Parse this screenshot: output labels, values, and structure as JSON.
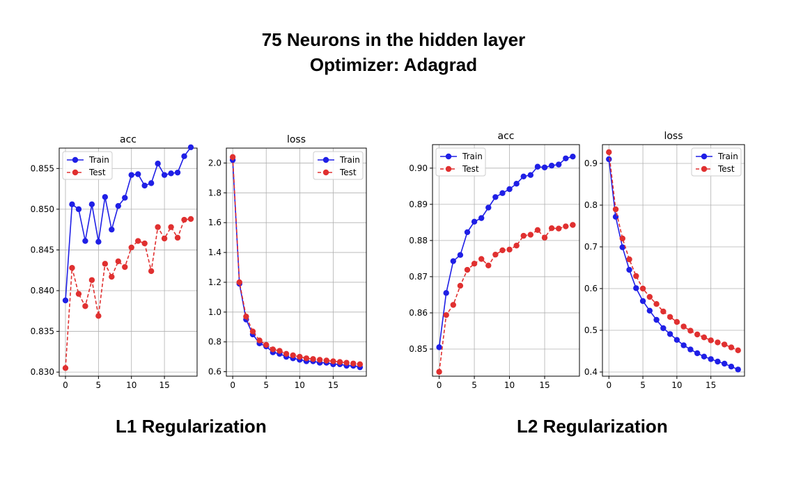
{
  "figure": {
    "title_line1": "75 Neurons in the hidden layer",
    "title_line2": "Optimizer: Adagrad",
    "left_group_label": "L1 Regularization",
    "right_group_label": "L2 Regularization"
  },
  "colors": {
    "train": "#1f1fe6",
    "test": "#e03030",
    "grid": "#b0b0b0"
  },
  "chart_data": [
    {
      "type": "line",
      "group": "L1 Regularization",
      "title": "acc",
      "x": [
        0,
        1,
        2,
        3,
        4,
        5,
        6,
        7,
        8,
        9,
        10,
        11,
        12,
        13,
        14,
        15,
        16,
        17,
        18,
        19
      ],
      "xticks": [
        0,
        5,
        10,
        15
      ],
      "ylim": [
        0.8295,
        0.8575
      ],
      "yticks": [
        "0.830",
        "0.835",
        "0.840",
        "0.845",
        "0.850",
        "0.855"
      ],
      "yticks_values": [
        0.83,
        0.835,
        0.84,
        0.845,
        0.85,
        0.855
      ],
      "grid": true,
      "legend": "top-left",
      "series": [
        {
          "name": "Train",
          "style": "solid",
          "values": [
            0.8388,
            0.8506,
            0.85,
            0.8461,
            0.8506,
            0.846,
            0.8515,
            0.8475,
            0.8504,
            0.8514,
            0.8542,
            0.8543,
            0.8529,
            0.8532,
            0.8556,
            0.8542,
            0.8544,
            0.8545,
            0.8565,
            0.8576
          ]
        },
        {
          "name": "Test",
          "style": "dashed",
          "values": [
            0.8305,
            0.8428,
            0.8396,
            0.8381,
            0.8413,
            0.8369,
            0.8433,
            0.8417,
            0.8436,
            0.8429,
            0.8453,
            0.8461,
            0.8458,
            0.8424,
            0.8478,
            0.8464,
            0.8478,
            0.8465,
            0.8487,
            0.8488
          ]
        }
      ]
    },
    {
      "type": "line",
      "group": "L1 Regularization",
      "title": "loss",
      "x": [
        0,
        1,
        2,
        3,
        4,
        5,
        6,
        7,
        8,
        9,
        10,
        11,
        12,
        13,
        14,
        15,
        16,
        17,
        18,
        19
      ],
      "xticks": [
        0,
        5,
        10,
        15
      ],
      "ylim": [
        0.57,
        2.1
      ],
      "yticks": [
        "0.6",
        "0.8",
        "1.0",
        "1.2",
        "1.4",
        "1.6",
        "1.8",
        "2.0"
      ],
      "yticks_values": [
        0.6,
        0.8,
        1.0,
        1.2,
        1.4,
        1.6,
        1.8,
        2.0
      ],
      "grid": true,
      "legend": "top-right",
      "series": [
        {
          "name": "Train",
          "style": "solid",
          "values": [
            2.02,
            1.19,
            0.95,
            0.85,
            0.79,
            0.77,
            0.73,
            0.72,
            0.7,
            0.69,
            0.68,
            0.67,
            0.67,
            0.66,
            0.66,
            0.65,
            0.65,
            0.64,
            0.64,
            0.63
          ]
        },
        {
          "name": "Test",
          "style": "dashed",
          "values": [
            2.04,
            1.2,
            0.97,
            0.87,
            0.81,
            0.78,
            0.75,
            0.74,
            0.72,
            0.71,
            0.7,
            0.69,
            0.685,
            0.68,
            0.675,
            0.67,
            0.665,
            0.66,
            0.655,
            0.65
          ]
        }
      ]
    },
    {
      "type": "line",
      "group": "L2 Regularization",
      "title": "acc",
      "x": [
        0,
        1,
        2,
        3,
        4,
        5,
        6,
        7,
        8,
        9,
        10,
        11,
        12,
        13,
        14,
        15,
        16,
        17,
        18,
        19
      ],
      "xticks": [
        0,
        5,
        10,
        15
      ],
      "ylim": [
        0.8425,
        0.9065
      ],
      "yticks": [
        "0.85",
        "0.86",
        "0.87",
        "0.88",
        "0.89",
        "0.90"
      ],
      "yticks_values": [
        0.85,
        0.86,
        0.87,
        0.88,
        0.89,
        0.9
      ],
      "grid": true,
      "legend": "top-left",
      "series": [
        {
          "name": "Train",
          "style": "solid",
          "values": [
            0.8505,
            0.8655,
            0.8743,
            0.876,
            0.8823,
            0.8852,
            0.8862,
            0.8891,
            0.892,
            0.8931,
            0.8942,
            0.8957,
            0.8977,
            0.8981,
            0.9004,
            0.9002,
            0.9007,
            0.901,
            0.9027,
            0.9032
          ]
        },
        {
          "name": "Test",
          "style": "dashed",
          "values": [
            0.8437,
            0.8594,
            0.8622,
            0.8675,
            0.8719,
            0.8736,
            0.8749,
            0.8731,
            0.8761,
            0.8773,
            0.8775,
            0.8786,
            0.8813,
            0.8816,
            0.8829,
            0.8808,
            0.8834,
            0.8833,
            0.8839,
            0.8843
          ]
        }
      ]
    },
    {
      "type": "line",
      "group": "L2 Regularization",
      "title": "loss",
      "x": [
        0,
        1,
        2,
        3,
        4,
        5,
        6,
        7,
        8,
        9,
        10,
        11,
        12,
        13,
        14,
        15,
        16,
        17,
        18,
        19
      ],
      "xticks": [
        0,
        5,
        10,
        15
      ],
      "ylim": [
        0.39,
        0.945
      ],
      "yticks": [
        "0.4",
        "0.5",
        "0.6",
        "0.7",
        "0.8",
        "0.9"
      ],
      "yticks_values": [
        0.4,
        0.5,
        0.6,
        0.7,
        0.8,
        0.9
      ],
      "grid": true,
      "legend": "top-right",
      "series": [
        {
          "name": "Train",
          "style": "solid",
          "values": [
            0.91,
            0.772,
            0.699,
            0.645,
            0.601,
            0.57,
            0.547,
            0.525,
            0.505,
            0.491,
            0.477,
            0.464,
            0.454,
            0.445,
            0.437,
            0.431,
            0.425,
            0.42,
            0.413,
            0.406
          ]
        },
        {
          "name": "Test",
          "style": "dashed",
          "values": [
            0.927,
            0.79,
            0.72,
            0.67,
            0.63,
            0.6,
            0.58,
            0.563,
            0.545,
            0.532,
            0.52,
            0.509,
            0.499,
            0.49,
            0.483,
            0.476,
            0.471,
            0.466,
            0.459,
            0.452
          ]
        }
      ]
    }
  ]
}
